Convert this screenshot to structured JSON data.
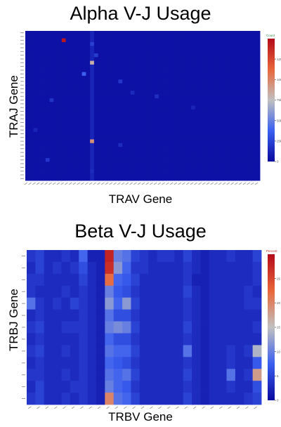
{
  "chart_data": [
    {
      "type": "heatmap",
      "title": "Alpha V-J Usage",
      "xlabel": "TRAV Gene",
      "ylabel": "TRAJ Gene",
      "legend_title": "Count",
      "legend_placement": "right",
      "colormap": [
        "#0a0a9e",
        "#3a5ff0",
        "#c0c0c0",
        "#e8663a",
        "#b40a1a"
      ],
      "zmax": 150000,
      "legend_ticks": [
        0,
        25000,
        50000,
        75000,
        100000,
        125000
      ],
      "legend_tick_labels": [
        "0",
        "25k",
        "50k",
        "75k",
        "100k",
        "125k"
      ],
      "ncols": 58,
      "nrows": 40,
      "base_value": 3000,
      "cells": [
        {
          "col": 9,
          "row": 2,
          "value": 145000
        },
        {
          "col": 16,
          "row": 3,
          "value": 24000
        },
        {
          "col": 17,
          "row": 6,
          "value": 22000
        },
        {
          "col": 16,
          "row": 8,
          "value": 82000
        },
        {
          "col": 14,
          "row": 11,
          "value": 38000
        },
        {
          "col": 23,
          "row": 13,
          "value": 20000
        },
        {
          "col": 6,
          "row": 18,
          "value": 18000
        },
        {
          "col": 26,
          "row": 16,
          "value": 14000
        },
        {
          "col": 32,
          "row": 17,
          "value": 16000
        },
        {
          "col": 41,
          "row": 20,
          "value": 12000
        },
        {
          "col": 16,
          "row": 29,
          "value": 95000
        },
        {
          "col": 23,
          "row": 30,
          "value": 15000
        },
        {
          "col": 5,
          "row": 34,
          "value": 20000
        },
        {
          "col": 2,
          "row": 26,
          "value": 12000
        },
        {
          "col": 16,
          "row": 37,
          "value": 14000
        }
      ],
      "column_boost": {
        "col": 16,
        "value": 9000
      }
    },
    {
      "type": "heatmap",
      "title": "Beta V-J Usage",
      "xlabel": "TRBV Gene",
      "ylabel": "TRBJ Gene",
      "legend_title": "Percent",
      "legend_placement": "right",
      "colormap": [
        "#0a0a9e",
        "#3a5ff0",
        "#c0c0c0",
        "#e8663a",
        "#b40a1a"
      ],
      "zmax": 30,
      "legend_ticks": [
        0,
        5,
        10,
        15,
        20,
        25
      ],
      "legend_tick_labels": [
        "0",
        "5",
        "10",
        "15",
        "20",
        "25"
      ],
      "ncols": 27,
      "nrows": 13,
      "grid": [
        [
          4,
          5,
          3,
          3,
          4,
          3,
          8,
          2,
          2,
          28,
          10,
          9,
          5,
          4,
          3,
          4,
          4,
          3,
          5,
          3,
          2,
          3,
          3,
          4,
          3,
          3,
          5
        ],
        [
          3,
          5,
          3,
          4,
          3,
          4,
          6,
          3,
          2,
          27,
          12,
          8,
          4,
          4,
          3,
          3,
          3,
          3,
          4,
          3,
          2,
          3,
          3,
          3,
          3,
          3,
          4
        ],
        [
          4,
          4,
          3,
          3,
          3,
          3,
          5,
          3,
          2,
          22,
          8,
          7,
          5,
          3,
          3,
          3,
          3,
          3,
          4,
          2,
          2,
          3,
          3,
          3,
          3,
          3,
          4
        ],
        [
          4,
          3,
          3,
          3,
          4,
          3,
          4,
          3,
          2,
          10,
          7,
          6,
          4,
          3,
          3,
          3,
          3,
          3,
          5,
          3,
          2,
          3,
          3,
          3,
          3,
          4,
          3
        ],
        [
          9,
          4,
          3,
          4,
          3,
          5,
          4,
          3,
          2,
          12,
          8,
          12,
          5,
          3,
          3,
          3,
          3,
          3,
          4,
          3,
          2,
          3,
          3,
          3,
          3,
          4,
          4
        ],
        [
          3,
          4,
          3,
          3,
          3,
          3,
          4,
          3,
          2,
          9,
          6,
          6,
          4,
          3,
          3,
          3,
          3,
          3,
          4,
          3,
          2,
          3,
          3,
          3,
          3,
          3,
          3
        ],
        [
          4,
          5,
          3,
          3,
          4,
          4,
          4,
          3,
          2,
          10,
          11,
          10,
          5,
          3,
          3,
          3,
          3,
          3,
          5,
          3,
          2,
          3,
          3,
          3,
          3,
          3,
          4
        ],
        [
          3,
          4,
          3,
          3,
          3,
          3,
          4,
          3,
          2,
          8,
          6,
          6,
          4,
          3,
          3,
          3,
          3,
          3,
          4,
          3,
          2,
          3,
          3,
          3,
          3,
          3,
          3
        ],
        [
          4,
          5,
          3,
          3,
          4,
          3,
          4,
          3,
          2,
          9,
          8,
          8,
          5,
          3,
          3,
          3,
          3,
          3,
          9,
          3,
          2,
          3,
          3,
          4,
          3,
          4,
          14
        ],
        [
          3,
          4,
          3,
          3,
          3,
          3,
          4,
          3,
          2,
          8,
          7,
          6,
          4,
          3,
          3,
          3,
          3,
          3,
          4,
          3,
          2,
          3,
          3,
          4,
          3,
          3,
          7
        ],
        [
          4,
          4,
          3,
          3,
          4,
          3,
          4,
          3,
          2,
          9,
          8,
          9,
          5,
          3,
          3,
          3,
          3,
          3,
          5,
          3,
          2,
          3,
          3,
          9,
          3,
          4,
          18
        ],
        [
          3,
          5,
          3,
          3,
          3,
          4,
          4,
          3,
          2,
          10,
          8,
          7,
          4,
          3,
          3,
          3,
          3,
          3,
          4,
          3,
          2,
          3,
          3,
          4,
          3,
          3,
          6
        ],
        [
          4,
          5,
          3,
          3,
          4,
          3,
          4,
          3,
          2,
          20,
          9,
          8,
          5,
          3,
          3,
          3,
          3,
          3,
          5,
          3,
          2,
          3,
          3,
          3,
          3,
          4,
          5
        ]
      ]
    }
  ]
}
